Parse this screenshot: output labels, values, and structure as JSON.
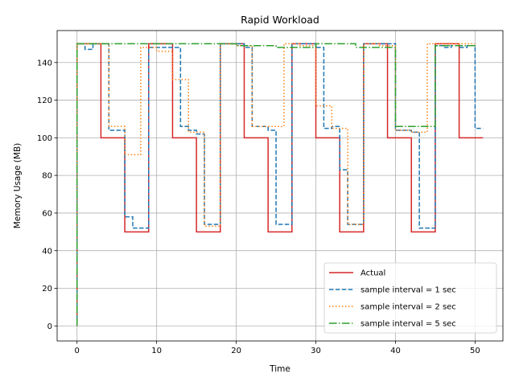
{
  "chart_data": {
    "type": "line",
    "title": "Rapid Workload",
    "xlabel": "Time",
    "ylabel": "Memory Usage (MB)",
    "xlim": [
      -2.5,
      53.5
    ],
    "ylim": [
      -8,
      157
    ],
    "xticks": [
      0,
      10,
      20,
      30,
      40,
      50
    ],
    "yticks": [
      0,
      20,
      40,
      60,
      80,
      100,
      120,
      140
    ],
    "grid": true,
    "legend_position": "lower right",
    "step": "post",
    "series": [
      {
        "name": "Actual",
        "color": "#d62728",
        "style": "solid",
        "x": [
          0,
          0,
          3,
          6,
          9,
          12,
          15,
          18,
          21,
          24,
          27,
          30,
          33,
          36,
          39,
          42,
          45,
          48,
          51
        ],
        "y": [
          0,
          150,
          100,
          50,
          150,
          100,
          50,
          150,
          100,
          50,
          150,
          100,
          50,
          150,
          100,
          50,
          150,
          100,
          100
        ]
      },
      {
        "name": "sample interval = 1 sec",
        "color": "#1f77b4",
        "style": "dashed",
        "x": [
          0,
          0,
          1,
          2,
          3,
          4,
          6,
          7,
          9,
          12,
          13,
          14,
          15,
          16,
          18,
          20,
          21,
          22,
          24,
          25,
          27,
          30,
          31,
          32,
          33,
          34,
          36,
          40,
          42,
          43,
          45,
          46,
          47,
          48,
          49,
          50,
          51
        ],
        "y": [
          0,
          150,
          147,
          150,
          150,
          104,
          58,
          52,
          148,
          148,
          106,
          104,
          102,
          54,
          150,
          150,
          148,
          106,
          104,
          54,
          150,
          148,
          105,
          106,
          83,
          54,
          150,
          104,
          103,
          52,
          149,
          148,
          149,
          148,
          149,
          105,
          105
        ]
      },
      {
        "name": "sample interval = 2 sec",
        "color": "#ff7f0e",
        "style": "dotted",
        "x": [
          0,
          0,
          2,
          4,
          6,
          8,
          10,
          12,
          14,
          16,
          18,
          20,
          22,
          24,
          26,
          28,
          30,
          32,
          34,
          36,
          38,
          40,
          42,
          44,
          46,
          48,
          50
        ],
        "y": [
          0,
          150,
          150,
          106,
          91,
          148,
          146,
          131,
          103,
          53,
          150,
          149,
          106,
          106,
          150,
          149,
          117,
          105,
          54,
          150,
          149,
          104,
          103,
          150,
          150,
          150,
          150
        ]
      },
      {
        "name": "sample interval = 5 sec",
        "color": "#2ca02c",
        "style": "dashdot",
        "x": [
          0,
          0,
          5,
          10,
          15,
          20,
          25,
          30,
          35,
          40,
          45,
          50
        ],
        "y": [
          0,
          150,
          150,
          150,
          150,
          149,
          148,
          150,
          148,
          106,
          149,
          150
        ]
      }
    ]
  }
}
